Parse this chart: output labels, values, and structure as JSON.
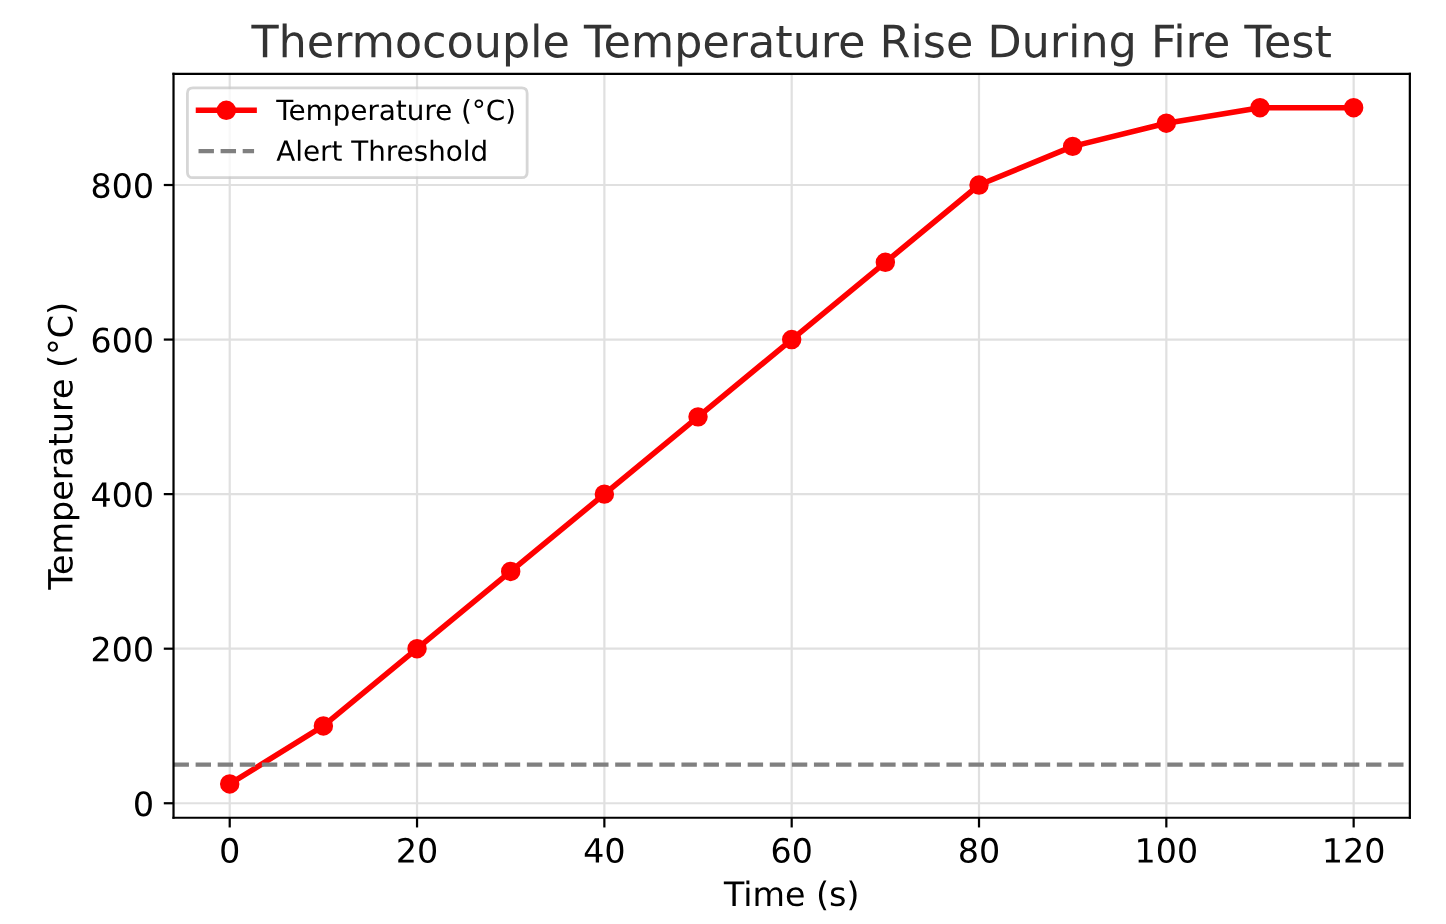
{
  "chart_data": {
    "type": "line",
    "title": "Thermocouple Temperature Rise During Fire Test",
    "xlabel": "Time (s)",
    "ylabel": "Temperature (°C)",
    "x": [
      0,
      10,
      20,
      30,
      40,
      50,
      60,
      70,
      80,
      90,
      100,
      110,
      120
    ],
    "series": [
      {
        "name": "Temperature (°C)",
        "color": "#ff0000",
        "values": [
          25,
          100,
          200,
          300,
          400,
          500,
          600,
          700,
          800,
          850,
          880,
          900,
          900
        ]
      }
    ],
    "ref_lines": [
      {
        "axis": "y",
        "value": 50,
        "label": "Alert Threshold",
        "color": "#808080",
        "line_style": "dashed"
      }
    ],
    "xlim": [
      -6,
      126
    ],
    "ylim": [
      -18.75,
      943.75
    ],
    "xticks": [
      0,
      20,
      40,
      60,
      80,
      100,
      120
    ],
    "yticks": [
      0,
      200,
      400,
      600,
      800
    ],
    "grid": true,
    "legend": "top left",
    "marker": "circle",
    "line_style": "solid"
  }
}
